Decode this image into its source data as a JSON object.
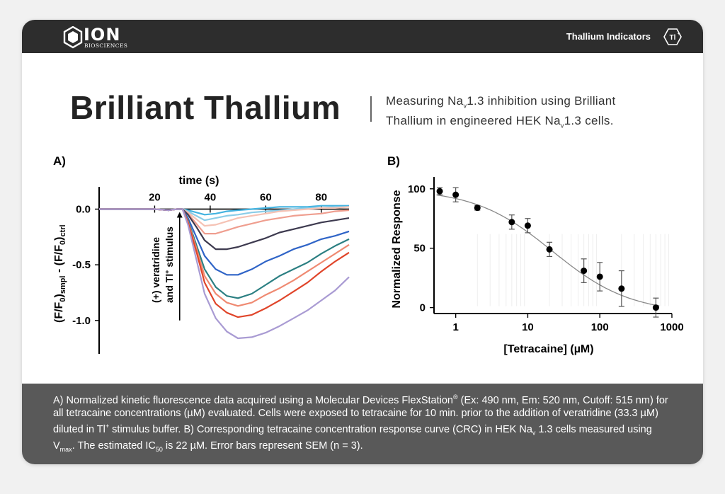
{
  "header": {
    "brand": "ION",
    "brand_sub": "BIOSCIENCES",
    "section_label": "Thallium Indicators",
    "badge_text": "Tl+"
  },
  "title": "Brilliant Thallium",
  "subtitle": {
    "line1_a": "Measuring Na",
    "line1_sub": "v",
    "line1_b": "1.3 inhibition using Brilliant",
    "line2_a": "Thallium in engineered HEK Na",
    "line2_sub": "v",
    "line2_b": "1.3 cells."
  },
  "caption": {
    "part1": "A) Normalized kinetic fluorescence data acquired using a Molecular Devices FlexStation",
    "reg": "®",
    "part2": " (Ex: 490 nm, Em: 520 nm, Cutoff: 515 nm) for all tetracaine concentrations (µM) evaluated. Cells were exposed to tetracaine for 10 min. prior to the addition of veratridine (33.3 µM) diluted in Tl",
    "plus": "+",
    "part3": " stimulus buffer. B) Corresponding tetracaine concentration response curve (CRC) in HEK Na",
    "nav_sub": "v",
    "part4": " 1.3 cells measured using V",
    "vmax_sub": "max",
    "part5": ". The estimated IC",
    "ic_sub": "50",
    "part6": " is 22 µM. Error bars represent SEM (n = 3)."
  },
  "colors": {
    "topbar": "#2d2d2d",
    "footer": "#595959",
    "title": "#232323"
  },
  "chart_data": [
    {
      "type": "line",
      "panel_label": "A)",
      "xlabel": "time (s)",
      "ylabel": "(F/F0)smpl - (F/F0)ctrl",
      "ylabel_parts": {
        "p1": "(F/F",
        "p1s": "0",
        "p2": ")",
        "p2s": "smpl",
        "p3": " - (F/F",
        "p3s": "0",
        "p4": ")",
        "p4s": "ctrl"
      },
      "annotation_line1": "(+) veratridine",
      "annotation_line2a": "and Tl",
      "annotation_line2sup": "+",
      "annotation_line2b": " stimulus",
      "xlim": [
        0,
        90
      ],
      "ylim": [
        -1.3,
        0.2
      ],
      "xticks": [
        20,
        40,
        60,
        80
      ],
      "yticks": [
        0.0,
        -0.5,
        -1.0
      ],
      "ytick_labels": [
        "0.0",
        "-0.5",
        "-1.0"
      ],
      "x": [
        0,
        5,
        10,
        15,
        20,
        25,
        28,
        30,
        32,
        35,
        38,
        42,
        46,
        50,
        55,
        60,
        65,
        70,
        75,
        80,
        85,
        90
      ],
      "series": [
        {
          "color": "#43b3e0",
          "values": [
            0,
            0,
            0,
            0,
            0,
            -0.01,
            0.0,
            0.0,
            -0.01,
            -0.03,
            -0.05,
            -0.04,
            -0.02,
            -0.01,
            0.0,
            0.01,
            0.02,
            0.02,
            0.02,
            0.03,
            0.03,
            0.03
          ]
        },
        {
          "color": "#8bcde8",
          "values": [
            0,
            0,
            0,
            0,
            0,
            -0.01,
            0.0,
            0.0,
            -0.02,
            -0.06,
            -0.1,
            -0.08,
            -0.06,
            -0.05,
            -0.03,
            -0.02,
            -0.01,
            0.0,
            0.01,
            0.01,
            0.02,
            0.02
          ]
        },
        {
          "color": "#f5c2b4",
          "values": [
            0,
            0,
            0,
            0,
            0,
            -0.01,
            0.0,
            0.0,
            -0.03,
            -0.09,
            -0.15,
            -0.14,
            -0.11,
            -0.08,
            -0.06,
            -0.04,
            -0.02,
            -0.01,
            0.0,
            0.01,
            0.01,
            0.02
          ]
        },
        {
          "color": "#ef9e8f",
          "values": [
            0,
            0,
            0,
            0,
            0,
            -0.01,
            0.0,
            0.0,
            -0.04,
            -0.13,
            -0.22,
            -0.22,
            -0.19,
            -0.16,
            -0.13,
            -0.1,
            -0.08,
            -0.06,
            -0.05,
            -0.04,
            -0.02,
            -0.01
          ]
        },
        {
          "color": "#3d3a4f",
          "values": [
            0,
            0,
            0,
            0,
            0,
            -0.01,
            0.0,
            0.0,
            -0.05,
            -0.16,
            -0.28,
            -0.36,
            -0.36,
            -0.34,
            -0.3,
            -0.26,
            -0.21,
            -0.18,
            -0.15,
            -0.12,
            -0.1,
            -0.08
          ]
        },
        {
          "color": "#2f64c7",
          "values": [
            0,
            0,
            0,
            0,
            0,
            -0.01,
            0.0,
            0.0,
            -0.08,
            -0.25,
            -0.42,
            -0.54,
            -0.59,
            -0.59,
            -0.54,
            -0.47,
            -0.42,
            -0.36,
            -0.32,
            -0.27,
            -0.24,
            -0.2
          ]
        },
        {
          "color": "#2b7f82",
          "values": [
            0,
            0,
            0,
            0,
            0,
            -0.01,
            0.0,
            0.0,
            -0.1,
            -0.32,
            -0.54,
            -0.7,
            -0.78,
            -0.8,
            -0.76,
            -0.68,
            -0.6,
            -0.54,
            -0.48,
            -0.4,
            -0.33,
            -0.27
          ]
        },
        {
          "color": "#ef8a72",
          "values": [
            0,
            0,
            0,
            0,
            0,
            -0.01,
            0.0,
            0.0,
            -0.11,
            -0.35,
            -0.6,
            -0.76,
            -0.84,
            -0.87,
            -0.84,
            -0.77,
            -0.71,
            -0.64,
            -0.56,
            -0.48,
            -0.4,
            -0.32
          ]
        },
        {
          "color": "#e0452a",
          "values": [
            0,
            0,
            0,
            0,
            0,
            -0.01,
            0.0,
            0.0,
            -0.12,
            -0.38,
            -0.66,
            -0.85,
            -0.93,
            -0.97,
            -0.95,
            -0.89,
            -0.82,
            -0.74,
            -0.66,
            -0.56,
            -0.47,
            -0.39
          ]
        },
        {
          "color": "#a99bd3",
          "values": [
            0,
            0,
            0,
            0,
            0,
            -0.01,
            0.0,
            0.0,
            -0.14,
            -0.45,
            -0.76,
            -0.98,
            -1.1,
            -1.16,
            -1.15,
            -1.11,
            -1.05,
            -0.98,
            -0.91,
            -0.82,
            -0.73,
            -0.61
          ]
        }
      ]
    },
    {
      "type": "scatter",
      "panel_label": "B)",
      "xlabel": "[Tetracaine] (µM)",
      "ylabel": "Normalized Response",
      "xscale": "log",
      "xlim": [
        0.5,
        1000
      ],
      "ylim": [
        -5,
        110
      ],
      "xticks": [
        1,
        10,
        100,
        1000
      ],
      "xtick_labels": [
        "1",
        "10",
        "100",
        "1000"
      ],
      "yticks": [
        0,
        50,
        100
      ],
      "ytick_labels": [
        "0",
        "50",
        "100"
      ],
      "points": [
        {
          "x": 0.6,
          "y": 98,
          "err": 3
        },
        {
          "x": 1,
          "y": 95,
          "err": 6
        },
        {
          "x": 2,
          "y": 84,
          "err": 2
        },
        {
          "x": 6,
          "y": 72,
          "err": 6
        },
        {
          "x": 10,
          "y": 69,
          "err": 6
        },
        {
          "x": 20,
          "y": 49,
          "err": 6
        },
        {
          "x": 60,
          "y": 31,
          "err": 10
        },
        {
          "x": 100,
          "y": 26,
          "err": 12
        },
        {
          "x": 200,
          "y": 16,
          "err": 15
        },
        {
          "x": 600,
          "y": 0,
          "err": 8
        }
      ],
      "fit": {
        "top": 100,
        "bottom": -5,
        "ic50": 22,
        "hill": 0.8
      }
    }
  ]
}
